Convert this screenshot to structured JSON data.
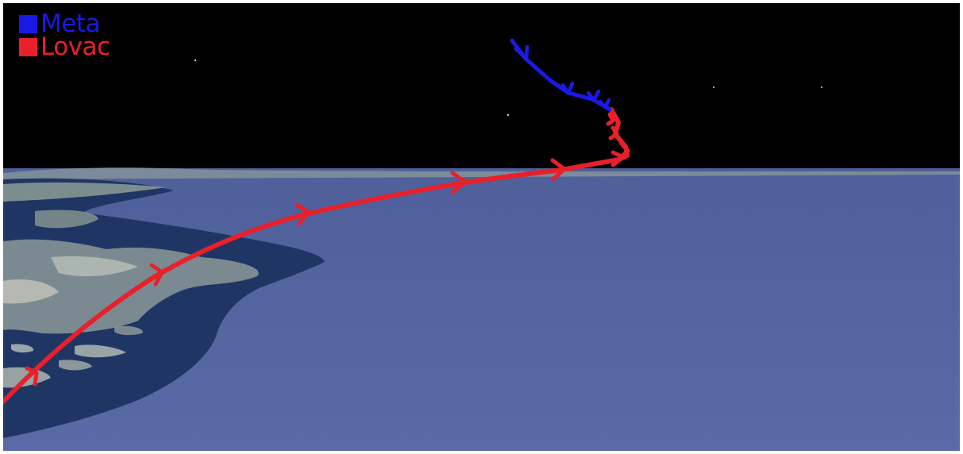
{
  "legend": [
    {
      "label": "Meta",
      "color": "#1a1ae6"
    },
    {
      "label": "Lovac",
      "color": "#e8202c"
    }
  ],
  "colors": {
    "sky": "#000000",
    "sea": "#5565a3",
    "coast_shallow": "#1f3563",
    "land": "#7f8f8f"
  }
}
